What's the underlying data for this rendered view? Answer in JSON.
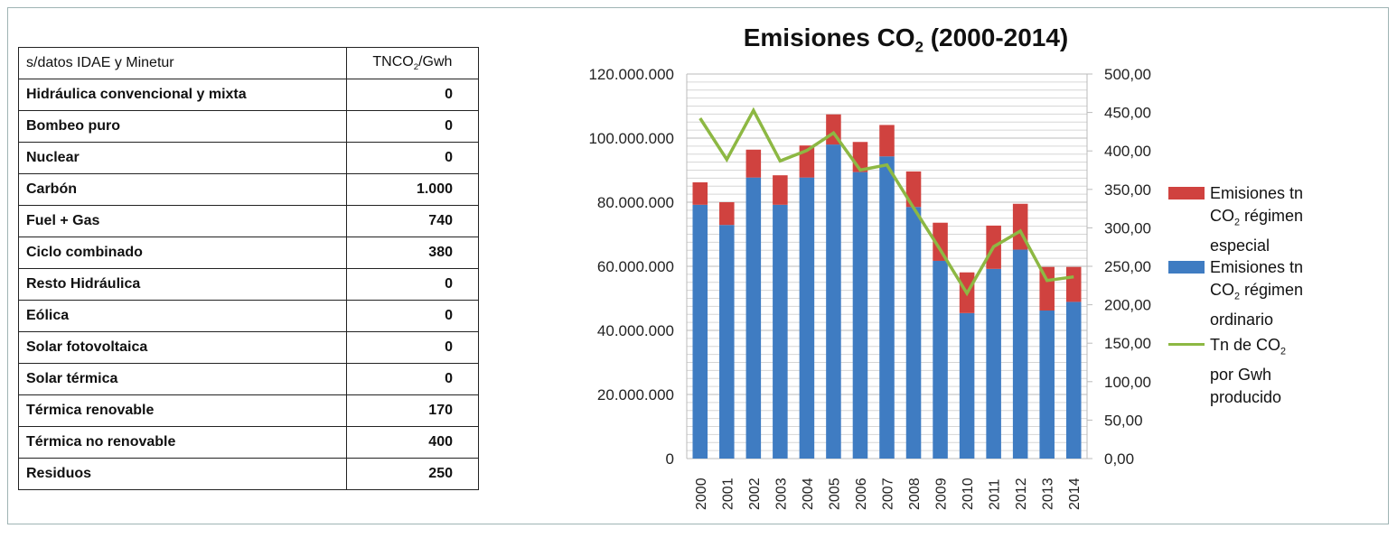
{
  "table": {
    "header": {
      "label": "s/datos IDAE y Minetur",
      "unit_pre": "TNCO",
      "unit_sub": "2",
      "unit_post": "/Gwh"
    },
    "rows": [
      {
        "name": "Hidráulica convencional y mixta",
        "value": "0"
      },
      {
        "name": "Bombeo puro",
        "value": "0"
      },
      {
        "name": "Nuclear",
        "value": "0"
      },
      {
        "name": "Carbón",
        "value": "1.000"
      },
      {
        "name": "Fuel + Gas",
        "value": "740"
      },
      {
        "name": "Ciclo combinado",
        "value": "380"
      },
      {
        "name": "Resto Hidráulica",
        "value": "0"
      },
      {
        "name": "Eólica",
        "value": "0"
      },
      {
        "name": "Solar fotovoltaica",
        "value": "0"
      },
      {
        "name": "Solar térmica",
        "value": "0"
      },
      {
        "name": "Térmica renovable",
        "value": "170"
      },
      {
        "name": "Térmica no renovable",
        "value": "400"
      },
      {
        "name": "Residuos",
        "value": "250"
      }
    ]
  },
  "chart_data": {
    "type": "bar",
    "stacked": true,
    "title_pre": "Emisiones CO",
    "title_sub": "2",
    "title_post": " (2000-2014)",
    "categories": [
      "2000",
      "2001",
      "2002",
      "2003",
      "2004",
      "2005",
      "2006",
      "2007",
      "2008",
      "2009",
      "2010",
      "2011",
      "2012",
      "2013",
      "2014"
    ],
    "ylim": [
      0,
      120000000
    ],
    "y2lim": [
      0,
      500
    ],
    "yticks": [
      "0",
      "20.000.000",
      "40.000.000",
      "60.000.000",
      "80.000.000",
      "100.000.000",
      "120.000.000"
    ],
    "y2ticks": [
      "0,00",
      "50,00",
      "100,00",
      "150,00",
      "200,00",
      "250,00",
      "300,00",
      "350,00",
      "400,00",
      "450,00",
      "500,00"
    ],
    "grid": true,
    "legend_placement": "right",
    "series": [
      {
        "name_lines": [
          "Emisiones tn",
          "CO|2| régimen",
          "ordinario"
        ],
        "type": "bar",
        "axis": "left",
        "color": "#3f7cc2",
        "values": [
          79200000,
          72900000,
          87700000,
          79200000,
          87700000,
          98000000,
          89400000,
          94300000,
          78500000,
          61700000,
          45400000,
          59200000,
          65200000,
          46200000,
          48900000
        ]
      },
      {
        "name_lines": [
          "Emisiones tn",
          "CO|2| régimen",
          "especial"
        ],
        "type": "bar",
        "axis": "left",
        "color": "#d0423f",
        "values": [
          7000000,
          7100000,
          8700000,
          9200000,
          10000000,
          9400000,
          9400000,
          9800000,
          11100000,
          11900000,
          12700000,
          13500000,
          14300000,
          13600000,
          10900000
        ]
      },
      {
        "name_lines": [
          "Tn de CO|2|",
          "por Gwh",
          "producido"
        ],
        "type": "line",
        "axis": "right",
        "color": "#8db843",
        "values": [
          442.5,
          388.9,
          452.7,
          387.0,
          400.6,
          423.4,
          375.2,
          381.8,
          326.0,
          271.5,
          214.8,
          275.5,
          295.8,
          231.6,
          236.3
        ]
      }
    ]
  }
}
